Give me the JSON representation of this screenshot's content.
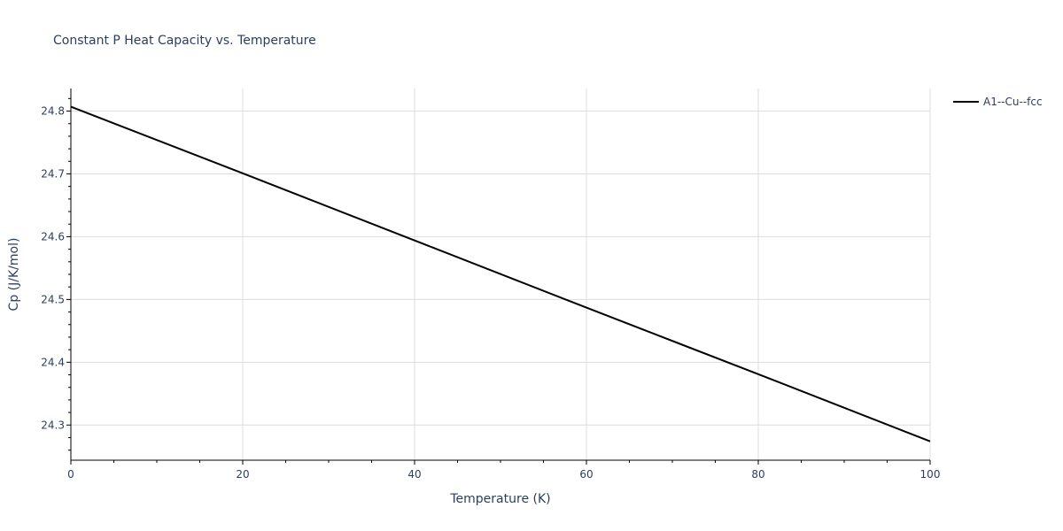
{
  "chart_data": {
    "type": "line",
    "title": "Constant P Heat Capacity vs. Temperature",
    "xlabel": "Temperature (K)",
    "ylabel": "Cp (J/K/mol)",
    "xlim": [
      0,
      100
    ],
    "ylim": [
      24.244,
      24.836
    ],
    "x_ticks": [
      0,
      20,
      40,
      60,
      80,
      100
    ],
    "y_ticks": [
      24.3,
      24.4,
      24.5,
      24.6,
      24.7,
      24.8
    ],
    "x_tick_labels": [
      "0",
      "20",
      "40",
      "60",
      "80",
      "100"
    ],
    "y_tick_labels": [
      "24.3",
      "24.4",
      "24.5",
      "24.6",
      "24.7",
      "24.8"
    ],
    "grid": true,
    "legend_position": "top-right",
    "series": [
      {
        "name": "A1--Cu--fcc",
        "color": "#000000",
        "x": [
          0,
          20,
          40,
          60,
          80,
          100
        ],
        "y": [
          24.807,
          24.701,
          24.594,
          24.487,
          24.381,
          24.274
        ]
      }
    ]
  }
}
